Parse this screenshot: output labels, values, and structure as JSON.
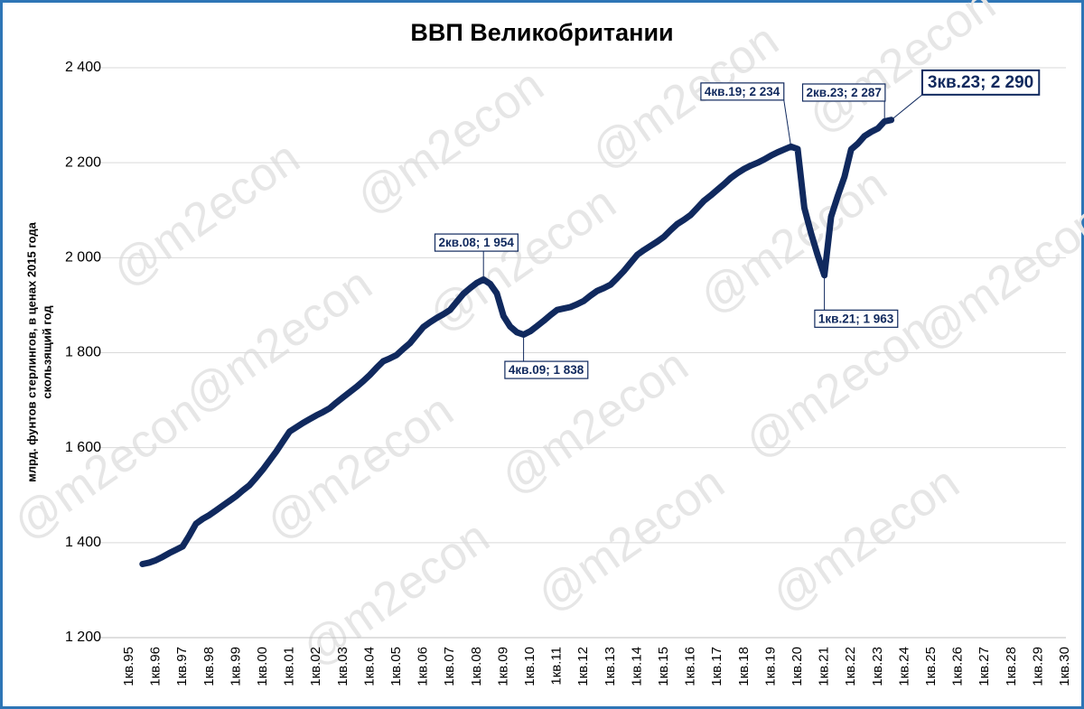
{
  "chart_data": {
    "type": "line",
    "title": "ВВП Великобритании",
    "watermark": "@m2econ",
    "ylabel": [
      "млрд. фунтов стерлингов, в ценах 2015 года",
      "скользящий год"
    ],
    "color": "#10295e",
    "categories": [
      "1кв.95",
      null,
      null,
      null,
      "1кв.96",
      null,
      null,
      null,
      "1кв.97",
      null,
      null,
      null,
      "1кв.98",
      null,
      null,
      null,
      "1кв.99",
      null,
      null,
      null,
      "1кв.00",
      null,
      null,
      null,
      "1кв.01",
      null,
      null,
      null,
      "1кв.02",
      null,
      null,
      null,
      "1кв.03",
      null,
      null,
      null,
      "1кв.04",
      null,
      null,
      null,
      "1кв.05",
      null,
      null,
      null,
      "1кв.06",
      null,
      null,
      null,
      "1кв.07",
      null,
      null,
      null,
      "1кв.08",
      null,
      null,
      null,
      "1кв.09",
      null,
      null,
      null,
      "1кв.10",
      null,
      null,
      null,
      "1кв.11",
      null,
      null,
      null,
      "1кв.12",
      null,
      null,
      null,
      "1кв.13",
      null,
      null,
      null,
      "1кв.14",
      null,
      null,
      null,
      "1кв.15",
      null,
      null,
      null,
      "1кв.16",
      null,
      null,
      null,
      "1кв.17",
      null,
      null,
      null,
      "1кв.18",
      null,
      null,
      null,
      "1кв.19",
      null,
      null,
      null,
      "1кв.20",
      null,
      null,
      null,
      "1кв.21",
      null,
      null,
      null,
      "1кв.22",
      null,
      null,
      null,
      "1кв.23",
      null,
      null,
      null,
      "1кв.24",
      null,
      null,
      null,
      "1кв.25",
      null,
      null,
      null,
      "1кв.26",
      null,
      null,
      null,
      "1кв.27",
      null,
      null,
      null,
      "1кв.28",
      null,
      null,
      null,
      "1кв.29",
      null,
      null,
      null,
      "1кв.30"
    ],
    "values": [
      null,
      null,
      1355,
      1358,
      1363,
      1370,
      1378,
      1385,
      1392,
      1415,
      1440,
      1450,
      1458,
      1468,
      1478,
      1488,
      1498,
      1510,
      1521,
      1537,
      1554,
      1573,
      1592,
      1613,
      1634,
      1643,
      1652,
      1660,
      1668,
      1675,
      1683,
      1695,
      1706,
      1717,
      1728,
      1740,
      1753,
      1768,
      1782,
      1788,
      1795,
      1808,
      1820,
      1837,
      1854,
      1864,
      1873,
      1881,
      1890,
      1907,
      1924,
      1936,
      1947,
      1954,
      1945,
      1925,
      1877,
      1855,
      1843,
      1838,
      1845,
      1856,
      1867,
      1879,
      1890,
      1893,
      1896,
      1902,
      1909,
      1920,
      1930,
      1936,
      1943,
      1957,
      1972,
      1989,
      2006,
      2016,
      2025,
      2034,
      2044,
      2058,
      2071,
      2080,
      2090,
      2105,
      2120,
      2131,
      2143,
      2155,
      2168,
      2178,
      2187,
      2194,
      2200,
      2207,
      2215,
      2222,
      2228,
      2234,
      2229,
      2105,
      2052,
      2005,
      1963,
      2086,
      2130,
      2170,
      2228,
      2240,
      2256,
      2265,
      2272,
      2287,
      2290,
      null,
      null,
      null,
      null,
      null,
      null,
      null,
      null,
      null,
      null,
      null,
      null,
      null,
      null,
      null,
      null,
      null,
      null,
      null,
      null,
      null,
      null,
      null,
      null,
      null,
      null
    ],
    "value_labels": [
      null,
      null,
      null,
      null,
      null,
      null,
      null,
      null,
      null,
      null,
      null,
      null,
      null,
      null,
      null,
      null,
      null,
      null,
      null,
      null,
      null,
      null,
      null,
      null,
      null,
      null,
      null,
      null,
      null,
      null,
      null,
      null,
      null,
      null,
      null,
      null,
      null,
      null,
      null,
      null,
      null,
      null,
      null,
      null,
      null,
      null,
      null,
      null,
      null,
      null,
      null,
      null,
      null,
      "2кв.08; 1 954",
      null,
      null,
      null,
      null,
      null,
      "4кв.09; 1 838",
      null,
      null,
      null,
      null,
      null,
      null,
      null,
      null,
      null,
      null,
      null,
      null,
      null,
      null,
      null,
      null,
      null,
      null,
      null,
      null,
      null,
      null,
      null,
      null,
      null,
      null,
      null,
      null,
      null,
      null,
      null,
      null,
      null,
      null,
      null,
      null,
      null,
      null,
      null,
      "4кв.19; 2 234",
      null,
      null,
      null,
      null,
      "1кв.21; 1 963",
      null,
      null,
      null,
      null,
      null,
      null,
      null,
      null,
      "2кв.23; 2 287",
      "3кв.23; 2 290",
      null,
      null,
      null,
      null,
      null,
      null,
      null,
      null,
      null,
      null,
      null,
      null,
      null,
      null,
      null,
      null,
      null,
      null,
      null,
      null,
      null,
      null,
      null,
      null,
      null,
      null
    ],
    "ylim": [
      1200,
      2400
    ],
    "yticks": [
      {
        "value": 1200,
        "label": "1 200"
      },
      {
        "value": 1400,
        "label": "1 400"
      },
      {
        "value": 1600,
        "label": "1 600"
      },
      {
        "value": 1800,
        "label": "1 800"
      },
      {
        "value": 2000,
        "label": "2 000"
      },
      {
        "value": 2200,
        "label": "2 200"
      },
      {
        "value": 2400,
        "label": "2 400"
      }
    ],
    "grid": true
  }
}
